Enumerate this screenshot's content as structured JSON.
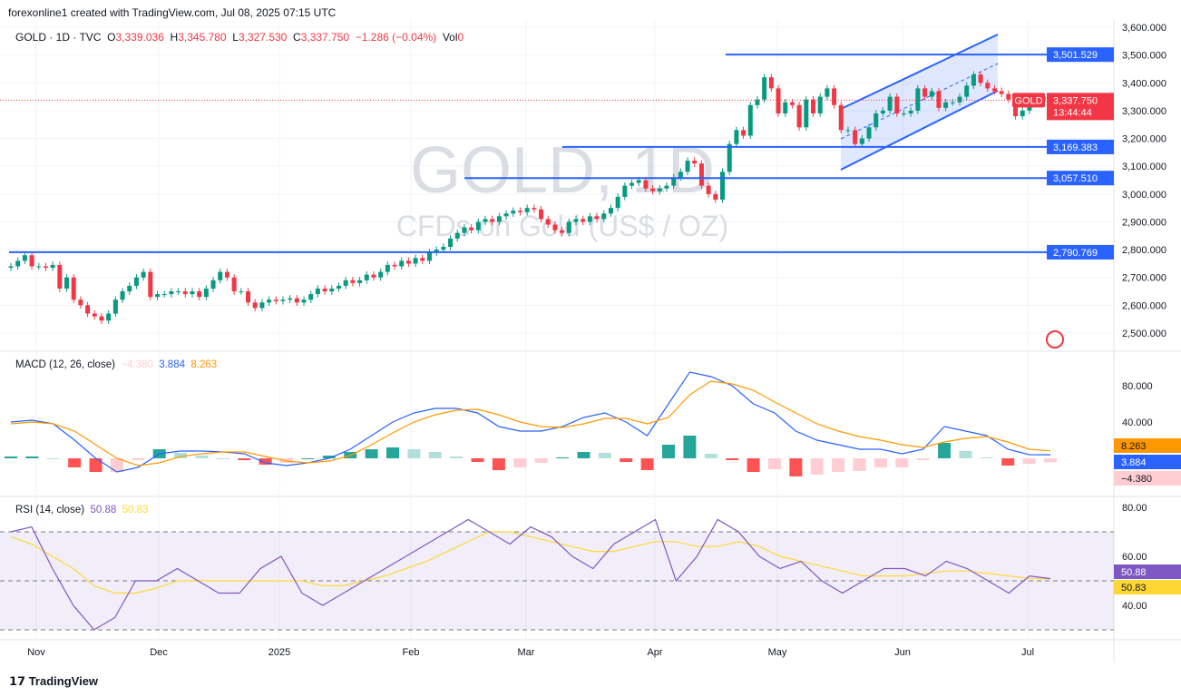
{
  "header": {
    "credit": "forexonline1 created with TradingView.com, Jul 08, 2025 07:15 UTC",
    "symbol": "GOLD · 1D · TVC",
    "o_label": "O",
    "o": "3,339.036",
    "h_label": "H",
    "h": "3,345.780",
    "l_label": "L",
    "l": "3,327.530",
    "c_label": "C",
    "c": "3,337.750",
    "change": "−1.286 (−0.04%)",
    "vol_label": "Vol",
    "vol": "0"
  },
  "watermark": {
    "line1": "GOLD, 1D",
    "line2": "CFDs on Gold (US$ / OZ)"
  },
  "price_tag": {
    "symbol": "GOLD",
    "price": "3,337.750",
    "countdown": "13:44:44"
  },
  "colors": {
    "up": "#089981",
    "down": "#f23645",
    "macd": "#2962ff",
    "signal": "#ff9800",
    "rsi": "#7e57c2",
    "rsi_ma": "#fdd835",
    "level_line": "#2962ff"
  },
  "macd_legend": {
    "title": "MACD (12, 26, close)",
    "hist": "−4.380",
    "macd": "3.884",
    "signal": "8.263"
  },
  "rsi_legend": {
    "title": "RSI (14, close)",
    "rsi": "50.88",
    "ma": "50.83"
  },
  "footer": {
    "brand": "TradingView"
  },
  "chart_data": [
    {
      "type": "candlestick",
      "ylim": [
        2450,
        3600
      ],
      "yticks": [
        "3,600.000",
        "3,500.000",
        "3,400.000",
        "3,300.000",
        "3,200.000",
        "3,100.000",
        "3,000.000",
        "2,900.000",
        "2,800.000",
        "2,700.000",
        "2,600.000",
        "2,500.000"
      ],
      "xticks": [
        "Nov",
        "Dec",
        "2025",
        "Feb",
        "Mar",
        "Apr",
        "May",
        "Jun",
        "Jul"
      ],
      "horizontal_levels": [
        {
          "value": 3501.529,
          "label": "3,501.529"
        },
        {
          "value": 3169.383,
          "label": "3,169.383"
        },
        {
          "value": 3057.51,
          "label": "3,057.510"
        },
        {
          "value": 2790.769,
          "label": "2,790.769"
        }
      ],
      "closes": [
        2740,
        2760,
        2780,
        2740,
        2740,
        2735,
        2745,
        2660,
        2700,
        2620,
        2600,
        2570,
        2560,
        2545,
        2570,
        2620,
        2650,
        2670,
        2700,
        2720,
        2630,
        2640,
        2640,
        2650,
        2650,
        2640,
        2650,
        2630,
        2660,
        2690,
        2720,
        2700,
        2650,
        2650,
        2610,
        2590,
        2610,
        2620,
        2615,
        2620,
        2625,
        2610,
        2620,
        2640,
        2660,
        2650,
        2660,
        2670,
        2690,
        2680,
        2690,
        2710,
        2700,
        2720,
        2745,
        2740,
        2760,
        2750,
        2770,
        2760,
        2790,
        2800,
        2810,
        2840,
        2860,
        2880,
        2870,
        2900,
        2910,
        2900,
        2920,
        2930,
        2940,
        2935,
        2950,
        2945,
        2910,
        2890,
        2870,
        2860,
        2900,
        2910,
        2900,
        2920,
        2910,
        2930,
        2950,
        2990,
        3030,
        3040,
        3050,
        3020,
        3010,
        3020,
        3030,
        3060,
        3080,
        3120,
        3110,
        3030,
        3000,
        2980,
        3080,
        3180,
        3230,
        3210,
        3320,
        3340,
        3420,
        3380,
        3290,
        3330,
        3320,
        3240,
        3340,
        3290,
        3350,
        3380,
        3320,
        3230,
        3230,
        3180,
        3200,
        3240,
        3290,
        3300,
        3350,
        3290,
        3290,
        3300,
        3380,
        3350,
        3370,
        3310,
        3330,
        3330,
        3350,
        3390,
        3430,
        3400,
        3380,
        3370,
        3360,
        3340,
        3280,
        3300,
        3340,
        3350,
        3340,
        3337.75
      ]
    },
    {
      "type": "line",
      "name": "MACD (12, 26, close)",
      "yticks": [
        "80.000",
        "40.000"
      ],
      "macd": [
        40,
        42,
        38,
        20,
        0,
        -15,
        -10,
        5,
        8,
        8,
        7,
        5,
        -5,
        -8,
        -5,
        0,
        10,
        25,
        40,
        50,
        55,
        55,
        50,
        35,
        30,
        30,
        35,
        45,
        50,
        40,
        25,
        60,
        95,
        90,
        80,
        60,
        50,
        30,
        20,
        15,
        10,
        10,
        5,
        10,
        35,
        30,
        25,
        10,
        4,
        3.884
      ],
      "signal": [
        38,
        40,
        38,
        30,
        15,
        0,
        -8,
        -5,
        2,
        5,
        7,
        7,
        2,
        -3,
        -5,
        -3,
        3,
        15,
        28,
        40,
        48,
        53,
        54,
        48,
        40,
        35,
        34,
        38,
        44,
        44,
        38,
        45,
        70,
        85,
        82,
        75,
        62,
        50,
        38,
        30,
        24,
        20,
        15,
        12,
        18,
        22,
        24,
        18,
        10,
        8.263
      ]
    },
    {
      "type": "line",
      "name": "RSI (14, close)",
      "ylim": [
        25,
        85
      ],
      "yticks": [
        "80.00",
        "60.00",
        "40.00"
      ],
      "bands": [
        70,
        30
      ],
      "rsi": [
        70,
        72,
        55,
        40,
        30,
        35,
        50,
        50,
        55,
        50,
        45,
        45,
        55,
        60,
        45,
        40,
        45,
        50,
        55,
        60,
        65,
        70,
        75,
        70,
        65,
        72,
        68,
        60,
        55,
        65,
        70,
        75,
        50,
        60,
        75,
        70,
        60,
        55,
        58,
        50,
        45,
        50,
        55,
        55,
        52,
        58,
        55,
        50,
        45,
        52,
        50.88
      ],
      "ma": [
        68,
        65,
        60,
        55,
        48,
        45,
        45,
        47,
        50,
        50,
        50,
        50,
        50,
        50,
        50,
        48,
        48,
        50,
        52,
        55,
        58,
        62,
        66,
        70,
        70,
        68,
        66,
        64,
        62,
        62,
        64,
        66,
        66,
        64,
        64,
        66,
        64,
        60,
        58,
        56,
        54,
        52,
        52,
        52,
        53,
        54,
        54,
        53,
        52,
        51,
        50.83
      ]
    }
  ]
}
